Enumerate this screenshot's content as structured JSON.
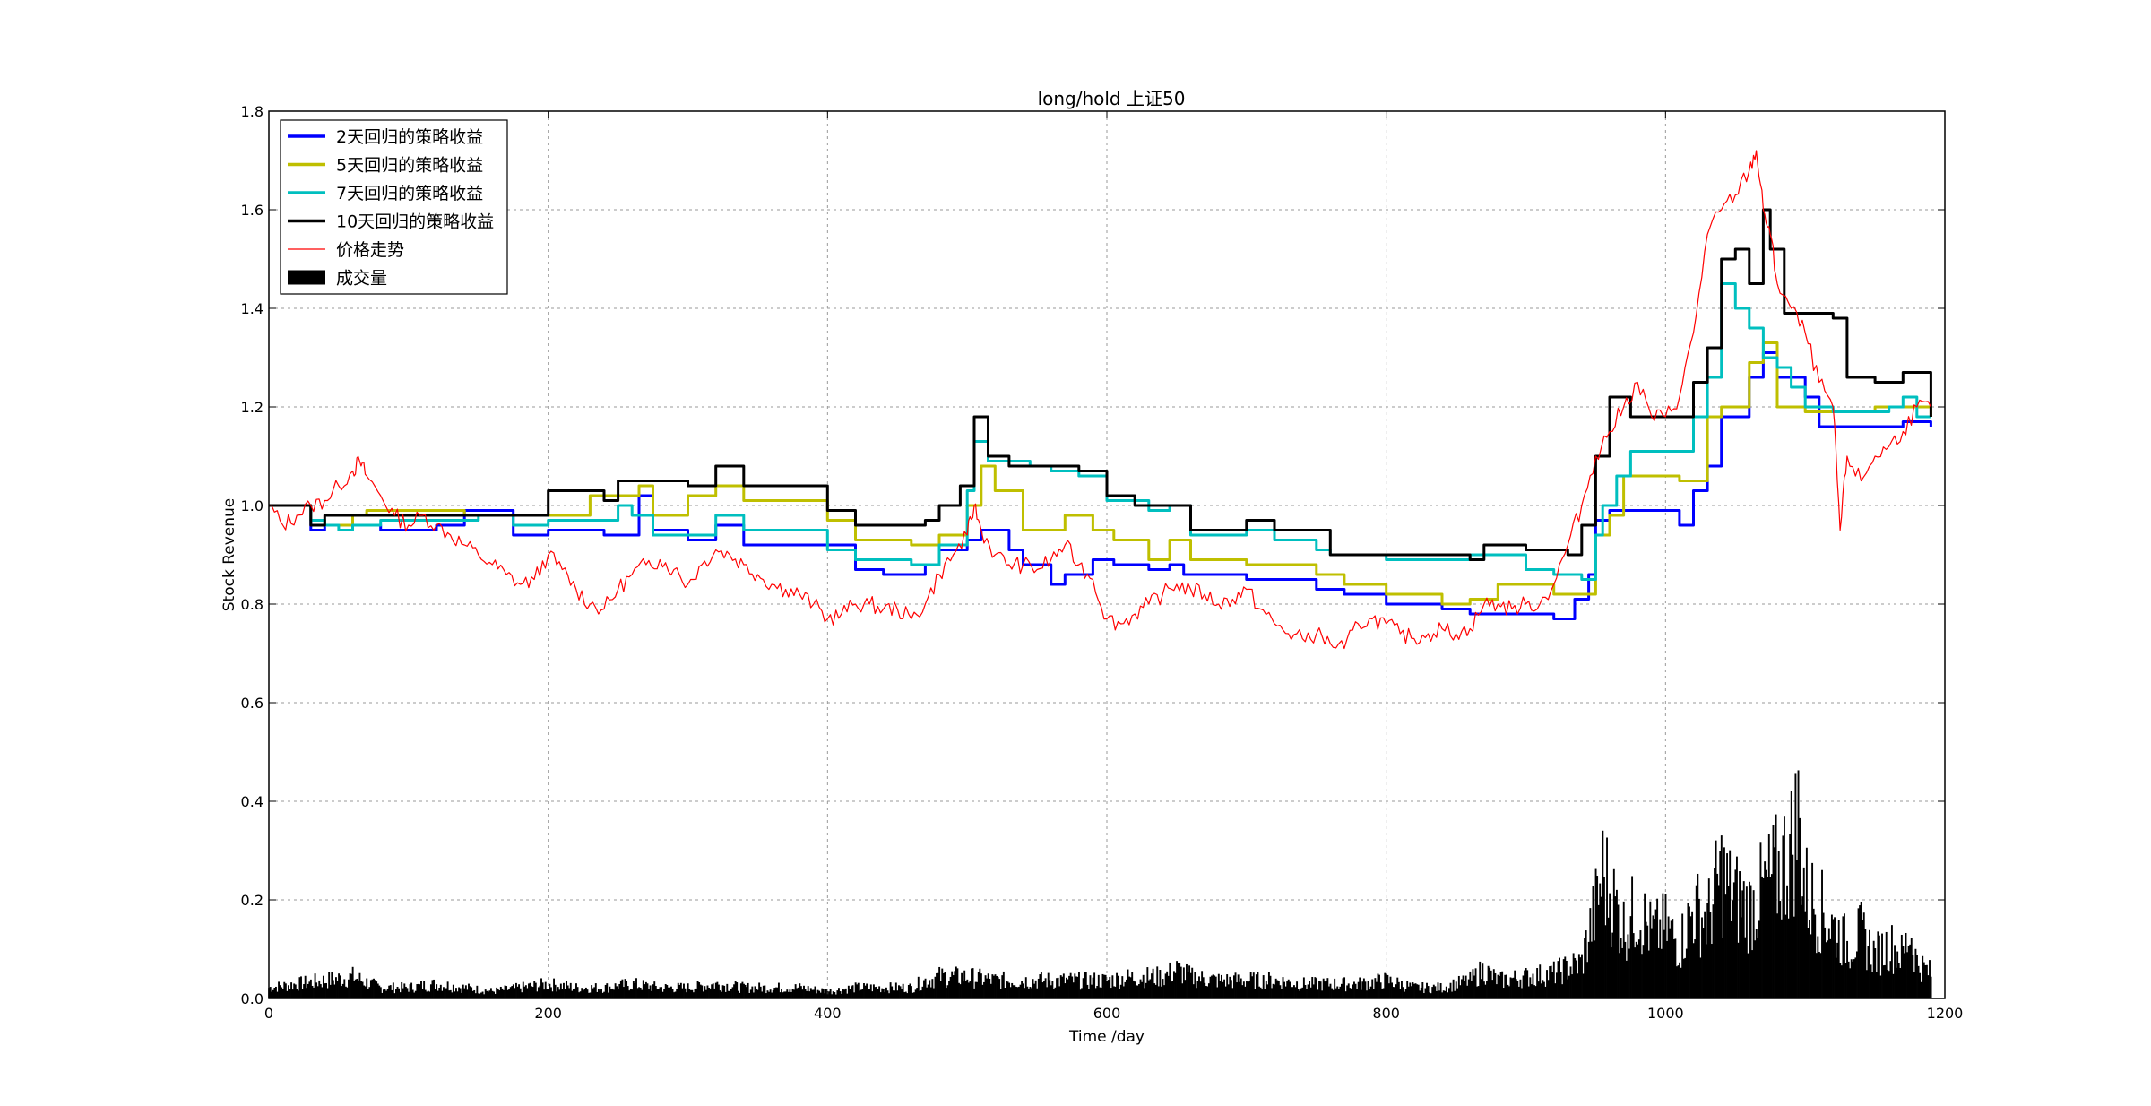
{
  "chart_data": {
    "type": "line",
    "title": "long/hold 上证50",
    "xlabel": "Time /day",
    "ylabel": "Stock Revenue",
    "xlim": [
      0,
      1200
    ],
    "ylim": [
      0.0,
      1.8
    ],
    "xticks": [
      0,
      200,
      400,
      600,
      800,
      1000,
      1200
    ],
    "xtick_labels": [
      "0",
      "200",
      "400",
      "600",
      "800",
      "1000",
      "1200"
    ],
    "yticks": [
      0.0,
      0.2,
      0.4,
      0.6,
      0.8,
      1.0,
      1.2,
      1.4,
      1.6,
      1.8
    ],
    "ytick_labels": [
      "0.0",
      "0.2",
      "0.4",
      "0.6",
      "0.8",
      "1.0",
      "1.2",
      "1.4",
      "1.6",
      "1.8"
    ],
    "grid": true,
    "legend_position": "upper-left",
    "series": [
      {
        "name": "2天回归的策略收益",
        "color": "#0000ff",
        "style": "line",
        "x": [
          0,
          25,
          30,
          40,
          60,
          80,
          120,
          140,
          175,
          200,
          240,
          250,
          265,
          275,
          300,
          320,
          340,
          390,
          420,
          440,
          460,
          470,
          480,
          500,
          510,
          530,
          540,
          555,
          560,
          570,
          590,
          605,
          630,
          645,
          655,
          680,
          700,
          720,
          750,
          770,
          800,
          840,
          860,
          880,
          920,
          935,
          945,
          950,
          960,
          1000,
          1010,
          1020,
          1030,
          1040,
          1060,
          1070,
          1080,
          1100,
          1110,
          1130,
          1150,
          1170,
          1190
        ],
        "y": [
          1.0,
          1.0,
          0.95,
          0.96,
          0.96,
          0.95,
          0.96,
          0.99,
          0.94,
          0.95,
          0.94,
          0.94,
          1.02,
          0.95,
          0.93,
          0.96,
          0.92,
          0.92,
          0.87,
          0.86,
          0.86,
          0.88,
          0.91,
          0.93,
          0.95,
          0.91,
          0.88,
          0.88,
          0.84,
          0.86,
          0.89,
          0.88,
          0.87,
          0.88,
          0.86,
          0.86,
          0.85,
          0.85,
          0.83,
          0.82,
          0.8,
          0.79,
          0.78,
          0.78,
          0.77,
          0.81,
          0.86,
          0.97,
          0.99,
          0.99,
          0.96,
          1.03,
          1.08,
          1.18,
          1.26,
          1.31,
          1.26,
          1.22,
          1.16,
          1.16,
          1.16,
          1.17,
          1.16
        ]
      },
      {
        "name": "5天回归的策略收益",
        "color": "#bfbf00",
        "style": "line",
        "x": [
          0,
          30,
          40,
          60,
          70,
          100,
          120,
          140,
          175,
          200,
          230,
          250,
          265,
          275,
          300,
          320,
          340,
          390,
          400,
          420,
          460,
          480,
          500,
          510,
          520,
          540,
          560,
          570,
          590,
          605,
          630,
          645,
          660,
          680,
          700,
          720,
          750,
          770,
          800,
          840,
          860,
          880,
          900,
          920,
          940,
          950,
          960,
          970,
          1000,
          1010,
          1030,
          1040,
          1060,
          1070,
          1080,
          1100,
          1110,
          1130,
          1150,
          1170,
          1190
        ],
        "y": [
          1.0,
          0.97,
          0.96,
          0.98,
          0.99,
          0.99,
          0.99,
          0.98,
          0.98,
          0.98,
          1.02,
          1.02,
          1.04,
          0.98,
          1.02,
          1.04,
          1.01,
          1.01,
          0.97,
          0.93,
          0.92,
          0.94,
          1.0,
          1.08,
          1.03,
          0.95,
          0.95,
          0.98,
          0.95,
          0.93,
          0.89,
          0.93,
          0.89,
          0.89,
          0.88,
          0.88,
          0.86,
          0.84,
          0.82,
          0.8,
          0.81,
          0.84,
          0.84,
          0.82,
          0.82,
          0.94,
          0.98,
          1.06,
          1.06,
          1.05,
          1.18,
          1.2,
          1.29,
          1.33,
          1.2,
          1.19,
          1.19,
          1.19,
          1.2,
          1.2,
          1.18
        ]
      },
      {
        "name": "7天回归的策略收益",
        "color": "#00bfbf",
        "style": "line",
        "x": [
          0,
          30,
          40,
          50,
          60,
          80,
          120,
          150,
          175,
          200,
          240,
          250,
          260,
          275,
          300,
          320,
          340,
          390,
          400,
          420,
          460,
          480,
          500,
          505,
          515,
          530,
          545,
          560,
          580,
          600,
          630,
          645,
          660,
          680,
          700,
          720,
          750,
          760,
          780,
          800,
          840,
          860,
          880,
          900,
          920,
          940,
          950,
          955,
          965,
          975,
          1000,
          1010,
          1020,
          1030,
          1040,
          1050,
          1060,
          1070,
          1080,
          1090,
          1100,
          1120,
          1140,
          1160,
          1170,
          1180,
          1190
        ],
        "y": [
          1.0,
          0.97,
          0.96,
          0.95,
          0.96,
          0.97,
          0.97,
          0.98,
          0.96,
          0.97,
          0.97,
          1.0,
          0.98,
          0.94,
          0.94,
          0.98,
          0.95,
          0.95,
          0.91,
          0.89,
          0.88,
          0.92,
          1.03,
          1.13,
          1.09,
          1.09,
          1.08,
          1.07,
          1.06,
          1.01,
          0.99,
          1.0,
          0.94,
          0.94,
          0.95,
          0.93,
          0.91,
          0.9,
          0.9,
          0.89,
          0.89,
          0.9,
          0.9,
          0.87,
          0.86,
          0.85,
          0.94,
          1.0,
          1.06,
          1.11,
          1.11,
          1.11,
          1.18,
          1.26,
          1.45,
          1.4,
          1.36,
          1.3,
          1.28,
          1.24,
          1.2,
          1.19,
          1.19,
          1.2,
          1.22,
          1.18,
          1.18
        ]
      },
      {
        "name": "10天回归的策略收益",
        "color": "#000000",
        "style": "line",
        "x": [
          0,
          25,
          30,
          40,
          55,
          80,
          120,
          140,
          190,
          200,
          240,
          250,
          265,
          275,
          300,
          320,
          340,
          390,
          400,
          420,
          460,
          470,
          480,
          495,
          505,
          515,
          530,
          560,
          580,
          600,
          620,
          650,
          660,
          680,
          700,
          720,
          750,
          760,
          780,
          800,
          840,
          860,
          870,
          880,
          900,
          920,
          930,
          940,
          950,
          960,
          965,
          975,
          1000,
          1010,
          1020,
          1030,
          1040,
          1050,
          1060,
          1070,
          1075,
          1085,
          1100,
          1120,
          1130,
          1150,
          1170,
          1190
        ],
        "y": [
          1.0,
          1.0,
          0.96,
          0.98,
          0.98,
          0.98,
          0.98,
          0.98,
          0.98,
          1.03,
          1.01,
          1.05,
          1.05,
          1.05,
          1.04,
          1.08,
          1.04,
          1.04,
          0.99,
          0.96,
          0.96,
          0.97,
          1.0,
          1.04,
          1.18,
          1.1,
          1.08,
          1.08,
          1.07,
          1.02,
          1.0,
          1.0,
          0.95,
          0.95,
          0.97,
          0.95,
          0.95,
          0.9,
          0.9,
          0.9,
          0.9,
          0.89,
          0.92,
          0.92,
          0.91,
          0.91,
          0.9,
          0.96,
          1.1,
          1.22,
          1.22,
          1.18,
          1.18,
          1.18,
          1.25,
          1.32,
          1.5,
          1.52,
          1.45,
          1.6,
          1.52,
          1.39,
          1.39,
          1.38,
          1.26,
          1.25,
          1.27,
          1.18
        ]
      },
      {
        "name": "价格走势",
        "color": "#ff0000",
        "style": "thin-line",
        "x": [
          0,
          10,
          20,
          30,
          40,
          50,
          60,
          65,
          70,
          80,
          90,
          100,
          110,
          120,
          130,
          140,
          150,
          160,
          170,
          180,
          190,
          200,
          210,
          220,
          230,
          240,
          250,
          260,
          270,
          280,
          290,
          300,
          310,
          320,
          330,
          340,
          350,
          360,
          370,
          380,
          390,
          400,
          410,
          420,
          430,
          440,
          450,
          460,
          470,
          480,
          490,
          500,
          505,
          510,
          520,
          530,
          540,
          550,
          560,
          570,
          580,
          590,
          600,
          610,
          620,
          630,
          640,
          650,
          660,
          670,
          680,
          690,
          700,
          710,
          720,
          730,
          740,
          750,
          760,
          770,
          780,
          790,
          800,
          810,
          820,
          830,
          840,
          850,
          860,
          870,
          880,
          890,
          900,
          910,
          920,
          930,
          940,
          950,
          960,
          970,
          980,
          990,
          1000,
          1010,
          1020,
          1030,
          1040,
          1050,
          1060,
          1065,
          1070,
          1075,
          1080,
          1090,
          1100,
          1110,
          1120,
          1125,
          1130,
          1140,
          1150,
          1160,
          1170,
          1180,
          1190
        ],
        "y": [
          1.0,
          0.96,
          0.98,
          1.0,
          1.01,
          1.04,
          1.07,
          1.09,
          1.06,
          1.02,
          0.98,
          0.96,
          0.98,
          0.96,
          0.94,
          0.92,
          0.9,
          0.88,
          0.86,
          0.84,
          0.85,
          0.9,
          0.87,
          0.83,
          0.8,
          0.79,
          0.83,
          0.86,
          0.88,
          0.89,
          0.87,
          0.84,
          0.88,
          0.91,
          0.9,
          0.88,
          0.86,
          0.84,
          0.83,
          0.82,
          0.8,
          0.77,
          0.78,
          0.8,
          0.8,
          0.79,
          0.79,
          0.77,
          0.8,
          0.86,
          0.9,
          0.94,
          1.0,
          0.95,
          0.9,
          0.88,
          0.88,
          0.87,
          0.89,
          0.92,
          0.88,
          0.85,
          0.77,
          0.76,
          0.78,
          0.8,
          0.82,
          0.84,
          0.83,
          0.82,
          0.8,
          0.81,
          0.83,
          0.79,
          0.76,
          0.74,
          0.73,
          0.74,
          0.72,
          0.71,
          0.76,
          0.77,
          0.76,
          0.74,
          0.73,
          0.74,
          0.75,
          0.74,
          0.75,
          0.8,
          0.8,
          0.79,
          0.8,
          0.8,
          0.84,
          0.92,
          1.0,
          1.1,
          1.15,
          1.2,
          1.25,
          1.18,
          1.18,
          1.22,
          1.35,
          1.55,
          1.6,
          1.63,
          1.68,
          1.72,
          1.6,
          1.55,
          1.45,
          1.4,
          1.35,
          1.25,
          1.2,
          0.95,
          1.1,
          1.05,
          1.1,
          1.12,
          1.15,
          1.2,
          1.2
        ]
      },
      {
        "name": "成交量",
        "color": "#000000",
        "style": "bar",
        "x": [
          0,
          20,
          40,
          60,
          80,
          100,
          120,
          140,
          160,
          180,
          200,
          220,
          240,
          260,
          280,
          300,
          320,
          340,
          360,
          380,
          400,
          420,
          440,
          460,
          470,
          480,
          500,
          520,
          540,
          560,
          580,
          600,
          620,
          640,
          650,
          660,
          680,
          700,
          720,
          740,
          760,
          780,
          800,
          820,
          840,
          860,
          870,
          880,
          900,
          920,
          940,
          945,
          950,
          955,
          960,
          970,
          980,
          990,
          1000,
          1010,
          1020,
          1030,
          1040,
          1045,
          1050,
          1060,
          1070,
          1080,
          1090,
          1095,
          1100,
          1110,
          1120,
          1130,
          1140,
          1150,
          1160,
          1170,
          1175,
          1180,
          1190
        ],
        "y": [
          0.03,
          0.04,
          0.05,
          0.06,
          0.03,
          0.03,
          0.04,
          0.03,
          0.02,
          0.03,
          0.04,
          0.03,
          0.03,
          0.04,
          0.03,
          0.03,
          0.04,
          0.03,
          0.03,
          0.03,
          0.02,
          0.03,
          0.03,
          0.03,
          0.05,
          0.06,
          0.06,
          0.05,
          0.05,
          0.05,
          0.05,
          0.05,
          0.06,
          0.06,
          0.08,
          0.06,
          0.05,
          0.05,
          0.05,
          0.04,
          0.04,
          0.04,
          0.05,
          0.03,
          0.03,
          0.05,
          0.08,
          0.05,
          0.06,
          0.07,
          0.1,
          0.18,
          0.25,
          0.35,
          0.3,
          0.2,
          0.25,
          0.18,
          0.2,
          0.15,
          0.25,
          0.22,
          0.35,
          0.3,
          0.28,
          0.25,
          0.3,
          0.35,
          0.42,
          0.5,
          0.3,
          0.25,
          0.2,
          0.15,
          0.18,
          0.12,
          0.15,
          0.12,
          0.19,
          0.1,
          0.07
        ]
      }
    ]
  }
}
